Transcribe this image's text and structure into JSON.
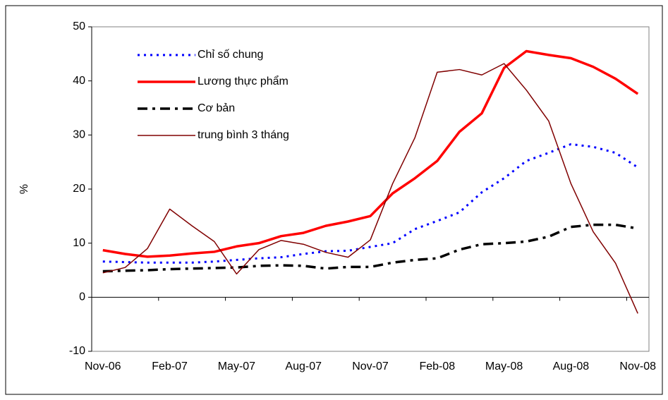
{
  "chart_data": {
    "type": "line",
    "y_label": "%",
    "categories": [
      "Nov-06",
      null,
      null,
      "Feb-07",
      null,
      null,
      "May-07",
      null,
      null,
      "Aug-07",
      null,
      null,
      "Nov-07",
      null,
      null,
      "Feb-08",
      null,
      null,
      "May-08",
      null,
      null,
      "Aug-08",
      null,
      null,
      "Nov-08"
    ],
    "series": [
      {
        "name": "Chỉ số chung",
        "color": "#0000ff",
        "style": "dotted",
        "values": [
          6.6,
          6.5,
          6.4,
          6.4,
          6.4,
          6.6,
          6.9,
          7.2,
          7.4,
          8.0,
          8.5,
          8.6,
          9.3,
          10.0,
          12.6,
          14.1,
          15.7,
          19.4,
          22.0,
          25.2,
          26.7,
          28.3,
          27.8,
          26.7,
          24.0
        ]
      },
      {
        "name": "Lương thực phẩm",
        "color": "#ff0000",
        "style": "solid",
        "values": [
          8.7,
          8.0,
          7.5,
          7.7,
          8.1,
          8.4,
          9.4,
          10.0,
          11.3,
          11.9,
          13.2,
          14.0,
          15.0,
          19.2,
          22.0,
          25.2,
          30.6,
          34.0,
          42.4,
          45.5,
          44.8,
          44.2,
          42.6,
          40.4,
          37.6
        ]
      },
      {
        "name": "Cơ bản",
        "color": "#000000",
        "style": "dashdot",
        "values": [
          4.8,
          4.9,
          5.0,
          5.2,
          5.3,
          5.4,
          5.5,
          5.8,
          5.9,
          5.8,
          5.3,
          5.6,
          5.6,
          6.4,
          6.9,
          7.2,
          8.8,
          9.8,
          10.0,
          10.3,
          11.2,
          13.0,
          13.4,
          13.4,
          12.7
        ]
      },
      {
        "name": "trung bình 3 tháng",
        "color": "#800000",
        "style": "thin",
        "values": [
          4.5,
          5.5,
          9.0,
          16.3,
          13.2,
          10.3,
          4.3,
          8.8,
          10.5,
          9.8,
          8.3,
          7.4,
          10.6,
          21.0,
          29.5,
          41.6,
          42.1,
          41.1,
          43.2,
          38.3,
          32.6,
          21.0,
          12.1,
          6.3,
          -3.0
        ]
      }
    ],
    "ylim": [
      -10,
      50
    ],
    "yticks": [
      -10,
      0,
      10,
      20,
      30,
      40,
      50
    ],
    "grid": false,
    "legend": "upper left"
  }
}
